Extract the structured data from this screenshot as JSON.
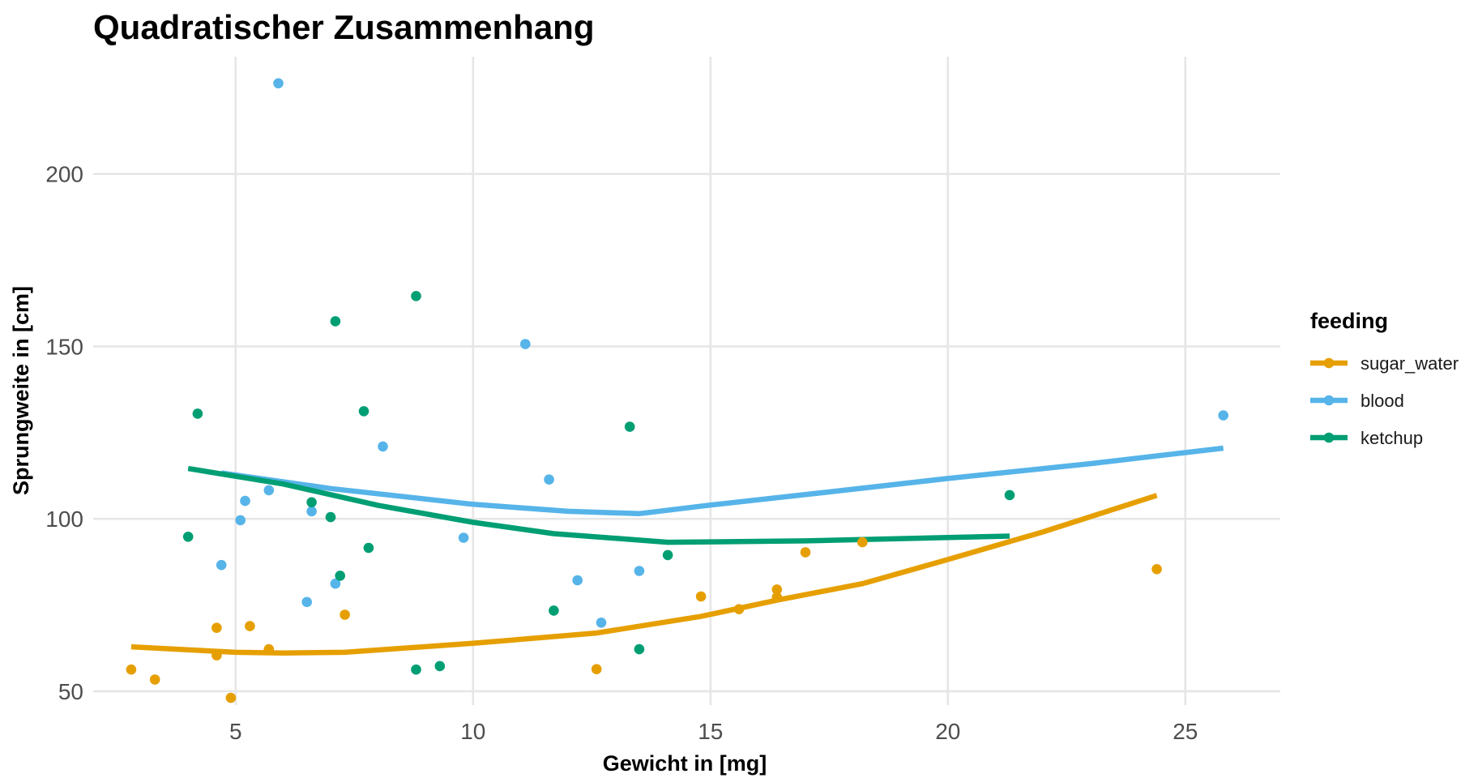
{
  "chart_data": {
    "type": "scatter",
    "title": "Quadratischer Zusammenhang",
    "xlabel": "Gewicht in [mg]",
    "ylabel": "Sprungweite in [cm]",
    "xlim": [
      2.0,
      27.0
    ],
    "ylim": [
      46,
      234
    ],
    "xticks": [
      5,
      10,
      15,
      20,
      25
    ],
    "yticks": [
      50,
      100,
      150,
      200
    ],
    "grid": true,
    "legend": {
      "title": "feeding",
      "position": "right"
    },
    "series": [
      {
        "name": "sugar_water",
        "color": "#E69F00",
        "points": [
          [
            2.8,
            56.3
          ],
          [
            3.3,
            53.4
          ],
          [
            4.6,
            68.4
          ],
          [
            4.6,
            60.4
          ],
          [
            4.9,
            48.1
          ],
          [
            5.3,
            68.9
          ],
          [
            5.7,
            62.2
          ],
          [
            7.3,
            72.2
          ],
          [
            12.6,
            56.4
          ],
          [
            14.8,
            77.5
          ],
          [
            15.6,
            73.8
          ],
          [
            16.4,
            77.3
          ],
          [
            16.4,
            79.5
          ],
          [
            17.0,
            90.3
          ],
          [
            18.2,
            93.2
          ],
          [
            24.4,
            85.4
          ]
        ],
        "fit": [
          [
            2.8,
            62.9
          ],
          [
            5.0,
            61.3
          ],
          [
            6.0,
            61.1
          ],
          [
            7.3,
            61.3
          ],
          [
            10.0,
            63.9
          ],
          [
            12.6,
            66.9
          ],
          [
            14.8,
            71.7
          ],
          [
            16.4,
            76.4
          ],
          [
            18.2,
            81.2
          ],
          [
            20.0,
            88.2
          ],
          [
            22.0,
            96.2
          ],
          [
            24.4,
            106.8
          ]
        ]
      },
      {
        "name": "blood",
        "color": "#56B4E9",
        "points": [
          [
            4.7,
            86.6
          ],
          [
            5.1,
            99.6
          ],
          [
            5.2,
            105.2
          ],
          [
            5.7,
            108.3
          ],
          [
            5.9,
            226.3
          ],
          [
            6.5,
            75.9
          ],
          [
            6.6,
            102.2
          ],
          [
            7.1,
            81.2
          ],
          [
            8.1,
            121.0
          ],
          [
            9.8,
            94.5
          ],
          [
            11.1,
            150.7
          ],
          [
            11.6,
            111.4
          ],
          [
            12.2,
            82.2
          ],
          [
            12.7,
            69.9
          ],
          [
            13.5,
            84.9
          ],
          [
            25.8,
            130.0
          ]
        ],
        "fit": [
          [
            4.7,
            113.3
          ],
          [
            7.0,
            108.8
          ],
          [
            10.0,
            104.2
          ],
          [
            12.0,
            102.2
          ],
          [
            13.5,
            101.5
          ],
          [
            15.0,
            104.0
          ],
          [
            17.5,
            107.8
          ],
          [
            20.0,
            111.7
          ],
          [
            23.0,
            116.0
          ],
          [
            25.8,
            120.5
          ]
        ]
      },
      {
        "name": "ketchup",
        "color": "#009E73",
        "points": [
          [
            4.0,
            94.8
          ],
          [
            4.2,
            130.5
          ],
          [
            6.6,
            104.8
          ],
          [
            7.0,
            100.5
          ],
          [
            7.1,
            157.3
          ],
          [
            7.2,
            83.5
          ],
          [
            7.7,
            131.2
          ],
          [
            7.8,
            91.6
          ],
          [
            8.8,
            164.6
          ],
          [
            8.8,
            56.3
          ],
          [
            9.3,
            57.3
          ],
          [
            11.7,
            73.4
          ],
          [
            13.3,
            126.7
          ],
          [
            13.5,
            62.2
          ],
          [
            14.1,
            89.5
          ],
          [
            21.3,
            106.9
          ]
        ],
        "fit": [
          [
            4.0,
            114.6
          ],
          [
            6.0,
            110.1
          ],
          [
            8.0,
            103.9
          ],
          [
            10.0,
            99.0
          ],
          [
            11.7,
            95.7
          ],
          [
            14.1,
            93.2
          ],
          [
            17.0,
            93.6
          ],
          [
            21.3,
            95.0
          ]
        ]
      }
    ]
  }
}
